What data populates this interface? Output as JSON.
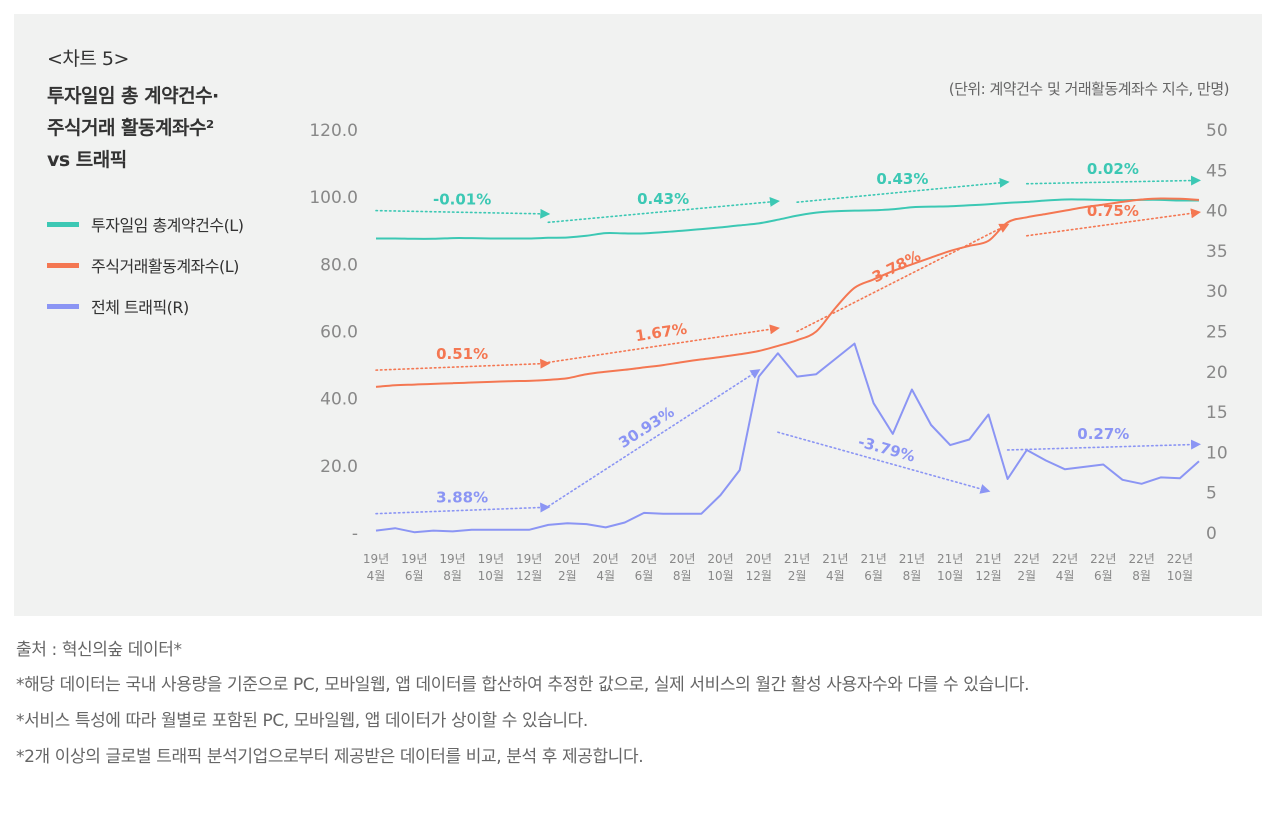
{
  "chart_label": "<차트 5>",
  "title_lines": [
    "투자일임 총 계약건수·",
    "주식거래 활동계좌수²",
    "vs 트래픽"
  ],
  "unit_text": "(단위: 계약건수 및 거래활동계좌수 지수, 만명)",
  "legend": [
    {
      "label": "투자일임 총계약건수(L)",
      "color": "#3cc8b4"
    },
    {
      "label": "주식거래활동계좌수(L)",
      "color": "#f47752"
    },
    {
      "label": "전체 트래픽(R)",
      "color": "#8b95f4"
    }
  ],
  "notes": {
    "source": "출처 : 혁신의숲 데이터*",
    "lines": [
      "*해당 데이터는 국내 사용량을 기준으로 PC, 모바일웹, 앱 데이터를 합산하여 추정한 값으로, 실제 서비스의 월간 활성 사용자수와 다를 수 있습니다.",
      "*서비스 특성에 따라 월별로 포함된 PC, 모바일웹, 앱 데이터가 상이할 수 있습니다.",
      "*2개 이상의 글로벌 트래픽 분석기업으로부터 제공받은 데이터를 비교, 분석 후 제공합니다."
    ]
  },
  "chart_data": {
    "type": "line",
    "categories": [
      "19-04",
      "19-05",
      "19-06",
      "19-07",
      "19-08",
      "19-09",
      "19-10",
      "19-11",
      "19-12",
      "20-01",
      "20-02",
      "20-03",
      "20-04",
      "20-05",
      "20-06",
      "20-07",
      "20-08",
      "20-09",
      "20-10",
      "20-11",
      "20-12",
      "21-01",
      "21-02",
      "21-03",
      "21-04",
      "21-05",
      "21-06",
      "21-07",
      "21-08",
      "21-09",
      "21-10",
      "21-11",
      "21-12",
      "22-01",
      "22-02",
      "22-03",
      "22-04",
      "22-05",
      "22-06",
      "22-07",
      "22-08",
      "22-09",
      "22-10",
      "22-11"
    ],
    "x_tick_labels": [
      {
        "index": 0,
        "year": "19년",
        "month": "4월"
      },
      {
        "index": 2,
        "year": "19년",
        "month": "6월"
      },
      {
        "index": 4,
        "year": "19년",
        "month": "8월"
      },
      {
        "index": 6,
        "year": "19년",
        "month": "10월"
      },
      {
        "index": 8,
        "year": "19년",
        "month": "12월"
      },
      {
        "index": 10,
        "year": "20년",
        "month": "2월"
      },
      {
        "index": 12,
        "year": "20년",
        "month": "4월"
      },
      {
        "index": 14,
        "year": "20년",
        "month": "6월"
      },
      {
        "index": 16,
        "year": "20년",
        "month": "8월"
      },
      {
        "index": 18,
        "year": "20년",
        "month": "10월"
      },
      {
        "index": 20,
        "year": "20년",
        "month": "12월"
      },
      {
        "index": 22,
        "year": "21년",
        "month": "2월"
      },
      {
        "index": 24,
        "year": "21년",
        "month": "4월"
      },
      {
        "index": 26,
        "year": "21년",
        "month": "6월"
      },
      {
        "index": 28,
        "year": "21년",
        "month": "8월"
      },
      {
        "index": 30,
        "year": "21년",
        "month": "10월"
      },
      {
        "index": 32,
        "year": "21년",
        "month": "12월"
      },
      {
        "index": 34,
        "year": "22년",
        "month": "2월"
      },
      {
        "index": 36,
        "year": "22년",
        "month": "4월"
      },
      {
        "index": 38,
        "year": "22년",
        "month": "6월"
      },
      {
        "index": 40,
        "year": "22년",
        "month": "8월"
      },
      {
        "index": 42,
        "year": "22년",
        "month": "10월"
      }
    ],
    "y_left": {
      "ticks": [
        "-",
        "20.0",
        "40.0",
        "60.0",
        "80.0",
        "100.0",
        "120.0"
      ],
      "ylim": [
        0,
        120
      ]
    },
    "y_right": {
      "ticks": [
        "0",
        "5",
        "10",
        "15",
        "20",
        "25",
        "30",
        "35",
        "40",
        "45",
        "50"
      ],
      "ylim": [
        0,
        50
      ]
    },
    "series": [
      {
        "name": "투자일임 총계약건수(L)",
        "axis": "left",
        "color": "#3cc8b4",
        "smooth": true,
        "values": [
          87.7,
          87.7,
          87.6,
          87.6,
          87.8,
          87.8,
          87.7,
          87.7,
          87.7,
          87.9,
          88.0,
          88.5,
          89.3,
          89.2,
          89.2,
          89.6,
          90.0,
          90.5,
          91.0,
          91.6,
          92.2,
          93.3,
          94.5,
          95.4,
          95.8,
          96.0,
          96.1,
          96.4,
          97.0,
          97.2,
          97.3,
          97.6,
          97.9,
          98.3,
          98.6,
          99.0,
          99.3,
          99.3,
          99.2,
          99.1,
          99.2,
          99.2,
          99.0,
          99.0
        ]
      },
      {
        "name": "주식거래활동계좌수(L)",
        "axis": "left",
        "color": "#f47752",
        "smooth": true,
        "values": [
          43.5,
          44.0,
          44.2,
          44.4,
          44.6,
          44.8,
          45.0,
          45.2,
          45.3,
          45.6,
          46.1,
          47.3,
          48.0,
          48.6,
          49.3,
          50.0,
          50.9,
          51.7,
          52.4,
          53.2,
          54.2,
          55.7,
          57.4,
          60.0,
          67.0,
          73.0,
          75.5,
          78.0,
          80.0,
          82.0,
          84.0,
          85.5,
          87.0,
          92.5,
          94.0,
          95.0,
          96.0,
          97.0,
          97.8,
          98.6,
          99.3,
          99.6,
          99.5,
          99.2
        ]
      },
      {
        "name": "전체 트래픽(R)",
        "axis": "right",
        "color": "#8b95f4",
        "smooth": false,
        "values": [
          0.3,
          0.6,
          0.1,
          0.3,
          0.2,
          0.4,
          0.4,
          0.4,
          0.4,
          1.0,
          1.2,
          1.1,
          0.7,
          1.3,
          2.5,
          2.4,
          2.4,
          2.4,
          4.7,
          7.8,
          19.4,
          22.3,
          19.4,
          19.7,
          21.6,
          23.5,
          16.1,
          12.3,
          17.8,
          13.4,
          10.9,
          11.6,
          14.7,
          6.7,
          10.3,
          9.0,
          7.9,
          8.2,
          8.5,
          6.6,
          6.1,
          6.9,
          6.8,
          8.9
        ]
      }
    ],
    "annotations": [
      {
        "series": "투자일임 총계약건수(L)",
        "label": "-0.01%",
        "from": [
          0,
          96.0
        ],
        "to": [
          9,
          95.0
        ]
      },
      {
        "series": "투자일임 총계약건수(L)",
        "label": "0.43%",
        "from": [
          9,
          92.5
        ],
        "to": [
          21,
          98.8
        ]
      },
      {
        "series": "투자일임 총계약건수(L)",
        "label": "0.43%",
        "from": [
          22,
          98.5
        ],
        "to": [
          33,
          104.5
        ]
      },
      {
        "series": "투자일임 총계약건수(L)",
        "label": "0.02%",
        "from": [
          34,
          104.0
        ],
        "to": [
          43,
          105.0
        ]
      },
      {
        "series": "주식거래활동계좌수(L)",
        "label": "0.51%",
        "from": [
          0,
          48.5
        ],
        "to": [
          9,
          50.5
        ]
      },
      {
        "series": "주식거래활동계좌수(L)",
        "label": "1.67%",
        "from": [
          9,
          50.8
        ],
        "to": [
          21,
          61.0
        ]
      },
      {
        "series": "주식거래활동계좌수(L)",
        "label": "3.78%",
        "from": [
          22,
          60.0
        ],
        "to": [
          33,
          91.8
        ]
      },
      {
        "series": "주식거래활동계좌수(L)",
        "label": "0.75%",
        "from": [
          34,
          88.5
        ],
        "to": [
          43,
          95.5
        ]
      },
      {
        "series": "전체 트래픽(R)",
        "label": "3.88%",
        "from": [
          0,
          2.4
        ],
        "to": [
          9,
          3.2
        ]
      },
      {
        "series": "전체 트래픽(R)",
        "label": "30.93%",
        "from": [
          9,
          3.3
        ],
        "to": [
          20,
          20.2
        ]
      },
      {
        "series": "전체 트래픽(R)",
        "label": "-3.79%",
        "from": [
          21,
          12.5
        ],
        "to": [
          32,
          5.2
        ]
      },
      {
        "series": "전체 트래픽(R)",
        "label": "0.27%",
        "from": [
          33,
          10.3
        ],
        "to": [
          43,
          11.0
        ]
      }
    ]
  }
}
